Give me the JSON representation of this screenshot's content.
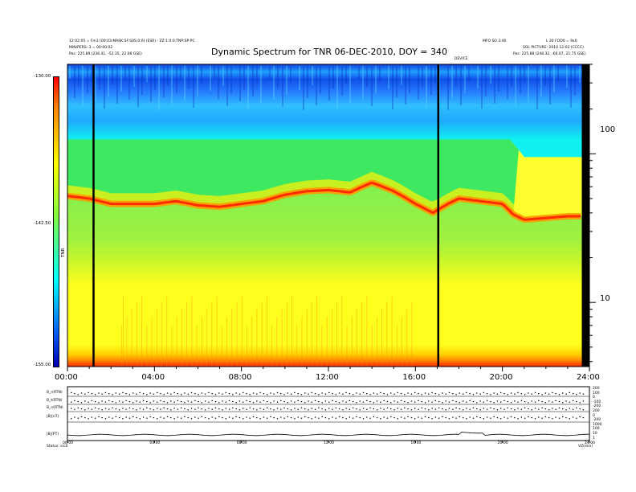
{
  "chart_data": [
    {
      "type": "heatmap",
      "title": "Dynamic Spectrum for TNR 06-DEC-2010, DOY = 340",
      "xlabel": "",
      "ylabel": "",
      "x_ticks": [
        "00:00",
        "04:00",
        "08:00",
        "12:00",
        "16:00",
        "20:00",
        "24:00"
      ],
      "x_range_hours": [
        0,
        24
      ],
      "y_scale": "log",
      "y_ticks": [
        "100",
        "10"
      ],
      "y_tick_values": [
        100,
        10
      ],
      "y_range": [
        3.7,
        400
      ],
      "colorbar": {
        "label": "TNR",
        "ticks": [
          "-130.00",
          "-142.50",
          "-155.00"
        ],
        "range": [
          -155,
          -130
        ],
        "colors": [
          "#0000c8",
          "#00a0ff",
          "#00ffff",
          "#40ff40",
          "#ffff00",
          "#ff8000",
          "#ff0000"
        ]
      },
      "header_left": [
        "12:02:05 = Fm1 [00:03:MASK:SF:S0S:0:0] (ESR) : ZZ:1:0:0:TNP:SP:PC",
        "MIN/PERS: 3 = 00:00:02",
        "Pos:     225.89 (236.41, -52.35, 22.06 GSE)"
      ],
      "header_right": [
        "MFO SO 3:40",
        "L 20 FOD0 = 9x0",
        "SOL PICTURE: 2010 12:02 (CCCC)",
        "Pos:     225.88 (248.32, -66.07, 21.75 GSE)"
      ],
      "marker_label": "DEVICE",
      "vertical_markers_hours": [
        1.2,
        17.05
      ],
      "ridge_freq_by_hour": [
        [
          0,
          52
        ],
        [
          1,
          50
        ],
        [
          2,
          46
        ],
        [
          3,
          46
        ],
        [
          4,
          46
        ],
        [
          5,
          48
        ],
        [
          6,
          45
        ],
        [
          7,
          44
        ],
        [
          8,
          46
        ],
        [
          9,
          48
        ],
        [
          10,
          53
        ],
        [
          11,
          56
        ],
        [
          12,
          57
        ],
        [
          13,
          55
        ],
        [
          14,
          64
        ],
        [
          15,
          56
        ],
        [
          16,
          46
        ],
        [
          16.8,
          40
        ],
        [
          17.5,
          46
        ],
        [
          18,
          50
        ],
        [
          19,
          48
        ],
        [
          20,
          46
        ],
        [
          20.5,
          39
        ],
        [
          21,
          36
        ],
        [
          22,
          37
        ],
        [
          23,
          38
        ],
        [
          23.5,
          38
        ]
      ],
      "green_edge_freq_by_hour": [
        [
          0,
          140
        ],
        [
          4,
          130
        ],
        [
          8,
          135
        ],
        [
          12,
          150
        ],
        [
          14,
          165
        ],
        [
          16,
          145
        ],
        [
          17,
          128
        ],
        [
          18,
          150
        ],
        [
          20,
          140
        ],
        [
          21,
          95
        ],
        [
          23.5,
          95
        ]
      ],
      "cyan_edge_freq_by_hour": [
        [
          0,
          130
        ],
        [
          24,
          130
        ]
      ]
    },
    {
      "type": "line",
      "title": "",
      "rows": [
        {
          "label": "B_r(RTN)",
          "kind": "dots"
        },
        {
          "label": "B_t(RTN)",
          "kind": "dots"
        },
        {
          "label": "B_n(RTN)",
          "kind": "dots"
        },
        {
          "label": "|B|(nT)",
          "kind": "dots"
        },
        {
          "label": "|B|(PT)",
          "kind": "line"
        }
      ],
      "row_right_ticks": [
        "200",
        "100",
        "0",
        "-100",
        "-200",
        "200",
        "0",
        "-200",
        "1000",
        "100",
        "10",
        "1"
      ],
      "x_ticks": [
        "00:00",
        "04:00",
        "08:00",
        "12:00",
        "16:00",
        "20:00",
        "24:00"
      ],
      "left_footer": [
        "Status:",
        "s/c0"
      ],
      "right_footer": "VZ(min)"
    }
  ]
}
